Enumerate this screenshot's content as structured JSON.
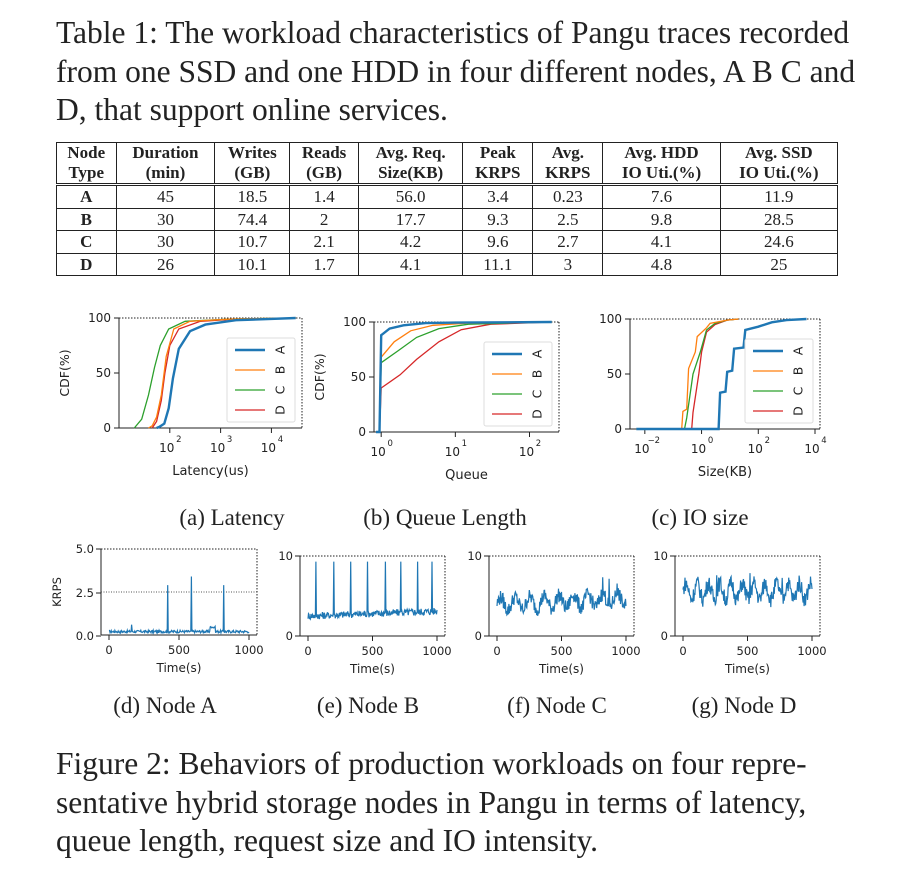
{
  "table_caption": "Table 1: The workload characteristics of Pangu traces recorded from one SSD and one HDD in four different nodes, A B C and D, that support online services.",
  "table": {
    "headers": [
      [
        "Node",
        "Type"
      ],
      [
        "Duration",
        "(min)"
      ],
      [
        "Writes",
        "(GB)"
      ],
      [
        "Reads",
        "(GB)"
      ],
      [
        "Avg. Req.",
        "Size(KB)"
      ],
      [
        "Peak",
        "KRPS"
      ],
      [
        "Avg.",
        "KRPS"
      ],
      [
        "Avg. HDD",
        "IO Uti.(%)"
      ],
      [
        "Avg. SSD",
        "IO Uti.(%)"
      ]
    ],
    "rows": [
      [
        "A",
        "45",
        "18.5",
        "1.4",
        "56.0",
        "3.4",
        "0.23",
        "7.6",
        "11.9"
      ],
      [
        "B",
        "30",
        "74.4",
        "2",
        "17.7",
        "9.3",
        "2.5",
        "9.8",
        "28.5"
      ],
      [
        "C",
        "30",
        "10.7",
        "2.1",
        "4.2",
        "9.6",
        "2.7",
        "4.1",
        "24.6"
      ],
      [
        "D",
        "26",
        "10.1",
        "1.7",
        "4.1",
        "11.1",
        "3",
        "4.8",
        "25"
      ]
    ]
  },
  "figure_caption": "Figure 2: Behaviors of production workloads on four representative hybrid storage nodes in Pangu in terms of latency, queue length, request size and IO intensity.",
  "figure_caption_lines": [
    "Figure 2: Behaviors of production workloads on four repre-",
    "sentative hybrid storage nodes in Pangu in terms of latency,",
    "queue length, request size and IO intensity."
  ],
  "colors": {
    "A": "#1f77b4",
    "B": "#ff7f0e",
    "C": "#2ca02c",
    "D": "#d62728"
  },
  "chart_data": [
    {
      "type": "line",
      "id": "latency",
      "subcaption": "(a) Latency",
      "xlabel": "Latency(us)",
      "ylabel": "CDF(%)",
      "xscale": "log",
      "xlim": [
        10,
        40000
      ],
      "ylim": [
        0,
        100
      ],
      "xticks": [
        {
          "v": 100,
          "b": "10",
          "e": "2"
        },
        {
          "v": 1000,
          "b": "10",
          "e": "3"
        },
        {
          "v": 10000,
          "b": "10",
          "e": "4"
        }
      ],
      "yticks": [
        "0",
        "50",
        "100"
      ],
      "legend": [
        "A",
        "B",
        "C",
        "D"
      ],
      "series": [
        {
          "name": "A",
          "points": [
            [
              55,
              0
            ],
            [
              62,
              1
            ],
            [
              78,
              4
            ],
            [
              95,
              18
            ],
            [
              115,
              45
            ],
            [
              150,
              72
            ],
            [
              250,
              88
            ],
            [
              500,
              94
            ],
            [
              2000,
              98
            ],
            [
              30000,
              100
            ]
          ]
        },
        {
          "name": "B",
          "points": [
            [
              38,
              0
            ],
            [
              45,
              2
            ],
            [
              55,
              10
            ],
            [
              68,
              30
            ],
            [
              85,
              65
            ],
            [
              120,
              90
            ],
            [
              250,
              97
            ],
            [
              1500,
              99
            ],
            [
              30000,
              100
            ]
          ]
        },
        {
          "name": "C",
          "points": [
            [
              20,
              0
            ],
            [
              28,
              8
            ],
            [
              38,
              30
            ],
            [
              50,
              55
            ],
            [
              65,
              75
            ],
            [
              95,
              90
            ],
            [
              200,
              97
            ],
            [
              1500,
              99
            ],
            [
              30000,
              100
            ]
          ]
        },
        {
          "name": "D",
          "points": [
            [
              45,
              0
            ],
            [
              55,
              6
            ],
            [
              68,
              25
            ],
            [
              80,
              50
            ],
            [
              100,
              75
            ],
            [
              150,
              90
            ],
            [
              400,
              97
            ],
            [
              2000,
              99
            ],
            [
              30000,
              100
            ]
          ]
        }
      ]
    },
    {
      "type": "line",
      "id": "queue",
      "subcaption": "(b) Queue Length",
      "xlabel": "Queue",
      "ylabel": "CDF(%)",
      "xscale": "log",
      "xlim": [
        0.8,
        250
      ],
      "ylim": [
        0,
        100
      ],
      "xticks": [
        {
          "v": 1,
          "b": "10",
          "e": "0"
        },
        {
          "v": 10,
          "b": "10",
          "e": "1"
        },
        {
          "v": 100,
          "b": "10",
          "e": "2"
        }
      ],
      "yticks": [
        "0",
        "50",
        "100"
      ],
      "legend": [
        "A",
        "B",
        "C",
        "D"
      ],
      "series": [
        {
          "name": "A",
          "points": [
            [
              0.85,
              0
            ],
            [
              0.95,
              0
            ],
            [
              1,
              88
            ],
            [
              1.3,
              94
            ],
            [
              2,
              97
            ],
            [
              4,
              99
            ],
            [
              10,
              99.5
            ],
            [
              200,
              100
            ]
          ]
        },
        {
          "name": "B",
          "points": [
            [
              0.85,
              0
            ],
            [
              0.95,
              0
            ],
            [
              1,
              68
            ],
            [
              1.5,
              82
            ],
            [
              2.5,
              92
            ],
            [
              5,
              97
            ],
            [
              15,
              99
            ],
            [
              200,
              100
            ]
          ]
        },
        {
          "name": "C",
          "points": [
            [
              0.85,
              0
            ],
            [
              0.95,
              0
            ],
            [
              1,
              63
            ],
            [
              1.7,
              74
            ],
            [
              3,
              86
            ],
            [
              6,
              94
            ],
            [
              15,
              98
            ],
            [
              200,
              100
            ]
          ]
        },
        {
          "name": "D",
          "points": [
            [
              0.85,
              0
            ],
            [
              0.95,
              0
            ],
            [
              1,
              40
            ],
            [
              1.8,
              52
            ],
            [
              3,
              66
            ],
            [
              6,
              82
            ],
            [
              12,
              93
            ],
            [
              30,
              98
            ],
            [
              200,
              100
            ]
          ]
        }
      ]
    },
    {
      "type": "line",
      "id": "iosize",
      "subcaption": "(c) IO size",
      "xlabel": "Size(KB)",
      "ylabel": "",
      "xscale": "log",
      "xlim": [
        0.003,
        15000
      ],
      "ylim": [
        0,
        100
      ],
      "xticks": [
        {
          "v": 0.01,
          "b": "10",
          "e": "−2"
        },
        {
          "v": 1,
          "b": "10",
          "e": "0"
        },
        {
          "v": 100,
          "b": "10",
          "e": "2"
        },
        {
          "v": 10000,
          "b": "10",
          "e": "4"
        }
      ],
      "yticks": [
        "0",
        "50",
        "100"
      ],
      "legend": [
        "A",
        "B",
        "C",
        "D"
      ],
      "series": [
        {
          "name": "A",
          "points": [
            [
              0.005,
              0
            ],
            [
              4,
              0
            ],
            [
              4.5,
              33
            ],
            [
              7,
              34
            ],
            [
              8,
              52
            ],
            [
              12,
              53
            ],
            [
              14,
              73
            ],
            [
              30,
              74
            ],
            [
              35,
              90
            ],
            [
              100,
              93
            ],
            [
              300,
              97
            ],
            [
              1000,
              99
            ],
            [
              5000,
              100
            ]
          ]
        },
        {
          "name": "B",
          "points": [
            [
              0.005,
              0
            ],
            [
              0.2,
              0
            ],
            [
              0.22,
              16
            ],
            [
              0.3,
              18
            ],
            [
              0.35,
              55
            ],
            [
              0.6,
              70
            ],
            [
              0.7,
              84
            ],
            [
              1.5,
              92
            ],
            [
              2,
              96
            ],
            [
              8,
              99
            ],
            [
              20,
              100
            ]
          ]
        },
        {
          "name": "C",
          "points": [
            [
              0.005,
              0
            ],
            [
              0.25,
              0
            ],
            [
              0.3,
              10
            ],
            [
              0.5,
              50
            ],
            [
              0.9,
              70
            ],
            [
              1.5,
              90
            ],
            [
              3,
              96
            ],
            [
              8,
              99
            ],
            [
              20,
              100
            ]
          ]
        },
        {
          "name": "D",
          "points": [
            [
              0.005,
              0
            ],
            [
              0.45,
              0
            ],
            [
              0.5,
              15
            ],
            [
              0.8,
              50
            ],
            [
              1,
              70
            ],
            [
              1.5,
              88
            ],
            [
              3,
              95
            ],
            [
              8,
              99
            ],
            [
              20,
              100
            ]
          ]
        }
      ]
    },
    {
      "type": "line",
      "id": "node-a",
      "subcaption": "(d) Node A",
      "xlabel": "Time(s)",
      "ylabel": "KRPS",
      "xlim": [
        0,
        1000
      ],
      "ylim": [
        0,
        5
      ],
      "xticks": [
        "0",
        "500",
        "1000"
      ],
      "yticks": [
        "0.0",
        "2.5",
        "5.0"
      ],
      "peak": 3.4,
      "baseline": 0.2
    },
    {
      "type": "line",
      "id": "node-b",
      "subcaption": "(e) Node B",
      "xlabel": "Time(s)",
      "ylabel": "",
      "xlim": [
        0,
        1000
      ],
      "ylim": [
        0,
        10
      ],
      "xticks": [
        "0",
        "500",
        "1000"
      ],
      "yticks": [
        "0",
        "10"
      ],
      "peak": 9.3,
      "baseline": 2.5
    },
    {
      "type": "line",
      "id": "node-c",
      "subcaption": "(f) Node C",
      "xlabel": "Time(s)",
      "ylabel": "",
      "xlim": [
        0,
        1000
      ],
      "ylim": [
        0,
        10
      ],
      "xticks": [
        "0",
        "500",
        "1000"
      ],
      "yticks": [
        "0",
        "10"
      ],
      "peak": 9.6,
      "baseline": 2.7
    },
    {
      "type": "line",
      "id": "node-d",
      "subcaption": "(g) Node D",
      "xlabel": "Time(s)",
      "ylabel": "",
      "xlim": [
        0,
        1000
      ],
      "ylim": [
        0,
        10
      ],
      "xticks": [
        "0",
        "500",
        "1000"
      ],
      "yticks": [
        "0",
        "10"
      ],
      "peak": 11.1,
      "baseline": 3.0
    }
  ]
}
